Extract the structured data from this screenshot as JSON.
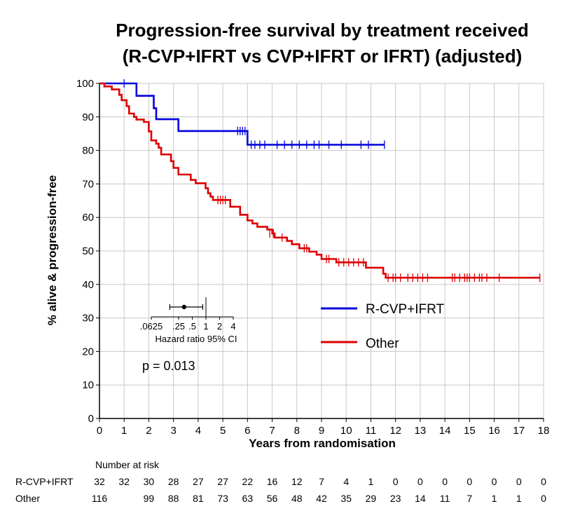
{
  "chart_data": {
    "type": "line",
    "subtype": "kaplan-meier",
    "title": [
      "Progression-free survival by treatment received",
      "(R-CVP+IFRT vs CVP+IFRT or IFRT) (adjusted)"
    ],
    "xlabel": "Years from randomisation",
    "ylabel": "% alive & progression-free",
    "xlim": [
      0,
      18
    ],
    "ylim": [
      0,
      100
    ],
    "x_ticks": [
      0,
      1,
      2,
      3,
      4,
      5,
      6,
      7,
      8,
      9,
      10,
      11,
      12,
      13,
      14,
      15,
      16,
      17,
      18
    ],
    "y_ticks": [
      0,
      10,
      20,
      30,
      40,
      50,
      60,
      70,
      80,
      90,
      100
    ],
    "grid": true,
    "legend_position": "right",
    "series": [
      {
        "name": "R-CVP+IFRT",
        "color": "#0000dd",
        "steps": [
          [
            0,
            100
          ],
          [
            1.5,
            100
          ],
          [
            1.5,
            96.3
          ],
          [
            2.2,
            96.3
          ],
          [
            2.2,
            92.6
          ],
          [
            2.3,
            92.6
          ],
          [
            2.3,
            89.3
          ],
          [
            3.2,
            89.3
          ],
          [
            3.2,
            85.8
          ],
          [
            6.0,
            85.8
          ],
          [
            6.0,
            81.7
          ],
          [
            11.55,
            81.7
          ]
        ],
        "censored": [
          [
            1.0,
            100
          ],
          [
            5.6,
            85.8
          ],
          [
            5.7,
            85.8
          ],
          [
            5.8,
            85.8
          ],
          [
            5.9,
            85.8
          ],
          [
            6.15,
            81.7
          ],
          [
            6.3,
            81.7
          ],
          [
            6.5,
            81.7
          ],
          [
            6.7,
            81.7
          ],
          [
            7.2,
            81.7
          ],
          [
            7.5,
            81.7
          ],
          [
            7.8,
            81.7
          ],
          [
            8.1,
            81.7
          ],
          [
            8.4,
            81.7
          ],
          [
            8.7,
            81.7
          ],
          [
            8.9,
            81.7
          ],
          [
            9.3,
            81.7
          ],
          [
            9.8,
            81.7
          ],
          [
            10.6,
            81.7
          ],
          [
            10.9,
            81.7
          ],
          [
            11.55,
            81.7
          ]
        ]
      },
      {
        "name": "Other",
        "color": "#dd0000",
        "steps": [
          [
            0,
            100
          ],
          [
            0.2,
            100
          ],
          [
            0.2,
            99.1
          ],
          [
            0.5,
            99.1
          ],
          [
            0.5,
            98.2
          ],
          [
            0.8,
            98.2
          ],
          [
            0.8,
            96.6
          ],
          [
            0.9,
            96.6
          ],
          [
            0.9,
            95.0
          ],
          [
            1.1,
            95.0
          ],
          [
            1.1,
            93.2
          ],
          [
            1.2,
            93.2
          ],
          [
            1.2,
            91.0
          ],
          [
            1.4,
            91.0
          ],
          [
            1.4,
            90.0
          ],
          [
            1.5,
            90.0
          ],
          [
            1.5,
            89.2
          ],
          [
            1.8,
            89.2
          ],
          [
            1.8,
            88.5
          ],
          [
            2.0,
            88.5
          ],
          [
            2.0,
            85.7
          ],
          [
            2.1,
            85.7
          ],
          [
            2.1,
            83.0
          ],
          [
            2.3,
            83.0
          ],
          [
            2.3,
            82.0
          ],
          [
            2.4,
            82.0
          ],
          [
            2.4,
            80.8
          ],
          [
            2.5,
            80.8
          ],
          [
            2.5,
            78.8
          ],
          [
            2.9,
            78.8
          ],
          [
            2.9,
            76.8
          ],
          [
            3.0,
            76.8
          ],
          [
            3.0,
            74.8
          ],
          [
            3.2,
            74.8
          ],
          [
            3.2,
            72.8
          ],
          [
            3.7,
            72.8
          ],
          [
            3.7,
            71.2
          ],
          [
            3.9,
            71.2
          ],
          [
            3.9,
            70.2
          ],
          [
            4.3,
            70.2
          ],
          [
            4.3,
            68.7
          ],
          [
            4.4,
            68.7
          ],
          [
            4.4,
            67.2
          ],
          [
            4.5,
            67.2
          ],
          [
            4.5,
            66.2
          ],
          [
            4.6,
            66.2
          ],
          [
            4.6,
            65.2
          ],
          [
            5.3,
            65.2
          ],
          [
            5.3,
            63.2
          ],
          [
            5.7,
            63.2
          ],
          [
            5.7,
            60.8
          ],
          [
            6.0,
            60.8
          ],
          [
            6.0,
            59.1
          ],
          [
            6.2,
            59.1
          ],
          [
            6.2,
            58.2
          ],
          [
            6.4,
            58.2
          ],
          [
            6.4,
            57.2
          ],
          [
            6.8,
            57.2
          ],
          [
            6.8,
            56.4
          ],
          [
            7.0,
            56.4
          ],
          [
            7.0,
            55.2
          ],
          [
            7.1,
            55.2
          ],
          [
            7.1,
            54.0
          ],
          [
            7.6,
            54.0
          ],
          [
            7.6,
            53.0
          ],
          [
            7.8,
            53.0
          ],
          [
            7.8,
            52.0
          ],
          [
            8.1,
            52.0
          ],
          [
            8.1,
            50.8
          ],
          [
            8.5,
            50.8
          ],
          [
            8.5,
            49.8
          ],
          [
            8.8,
            49.8
          ],
          [
            8.8,
            48.9
          ],
          [
            9.0,
            48.9
          ],
          [
            9.0,
            47.6
          ],
          [
            9.6,
            47.6
          ],
          [
            9.6,
            46.6
          ],
          [
            10.0,
            46.6
          ],
          [
            10.0,
            46.6
          ],
          [
            10.8,
            46.6
          ],
          [
            10.8,
            45.0
          ],
          [
            11.5,
            45.0
          ],
          [
            11.5,
            43.2
          ],
          [
            11.6,
            43.2
          ],
          [
            11.6,
            42.0
          ],
          [
            17.85,
            42.0
          ]
        ],
        "censored": [
          [
            4.8,
            65.2
          ],
          [
            4.9,
            65.2
          ],
          [
            5.0,
            65.2
          ],
          [
            5.1,
            65.2
          ],
          [
            6.9,
            55.2
          ],
          [
            7.05,
            55.2
          ],
          [
            7.4,
            54.0
          ],
          [
            8.3,
            50.8
          ],
          [
            8.4,
            50.8
          ],
          [
            9.2,
            47.6
          ],
          [
            9.3,
            47.6
          ],
          [
            9.7,
            46.6
          ],
          [
            9.9,
            46.6
          ],
          [
            10.1,
            46.6
          ],
          [
            10.3,
            46.6
          ],
          [
            10.5,
            46.6
          ],
          [
            10.7,
            46.6
          ],
          [
            11.7,
            42.0
          ],
          [
            11.9,
            42.0
          ],
          [
            12.0,
            42.0
          ],
          [
            12.2,
            42.0
          ],
          [
            12.5,
            42.0
          ],
          [
            12.7,
            42.0
          ],
          [
            12.9,
            42.0
          ],
          [
            13.1,
            42.0
          ],
          [
            13.3,
            42.0
          ],
          [
            14.3,
            42.0
          ],
          [
            14.4,
            42.0
          ],
          [
            14.6,
            42.0
          ],
          [
            14.8,
            42.0
          ],
          [
            14.9,
            42.0
          ],
          [
            15.0,
            42.0
          ],
          [
            15.2,
            42.0
          ],
          [
            15.4,
            42.0
          ],
          [
            15.5,
            42.0
          ],
          [
            15.7,
            42.0
          ],
          [
            16.2,
            42.0
          ],
          [
            17.85,
            42.0
          ]
        ]
      }
    ],
    "hazard_ratio": {
      "label": "Hazard ratio 95% CI",
      "ticks": [
        ".0625",
        ".25",
        ".5",
        "1",
        "2",
        "4"
      ],
      "tick_values": [
        0.0625,
        0.25,
        0.5,
        1,
        2,
        4
      ],
      "estimate": 0.33,
      "ci": [
        0.16,
        0.85
      ]
    },
    "p_value": "p = 0.013",
    "number_at_risk": {
      "heading": "Number at risk",
      "rows": [
        {
          "label": "R-CVP+IFRT",
          "values": [
            "32",
            "32",
            "30",
            "28",
            "27",
            "27",
            "22",
            "16",
            "12",
            "7",
            "4",
            "1",
            "0",
            "0",
            "0",
            "0",
            "0",
            "0",
            "0"
          ]
        },
        {
          "label": "Other",
          "values": [
            "116",
            "",
            "99",
            "88",
            "81",
            "73",
            "63",
            "56",
            "48",
            "42",
            "35",
            "29",
            "23",
            "14",
            "11",
            "7",
            "1",
            "1",
            "0"
          ]
        }
      ]
    }
  }
}
